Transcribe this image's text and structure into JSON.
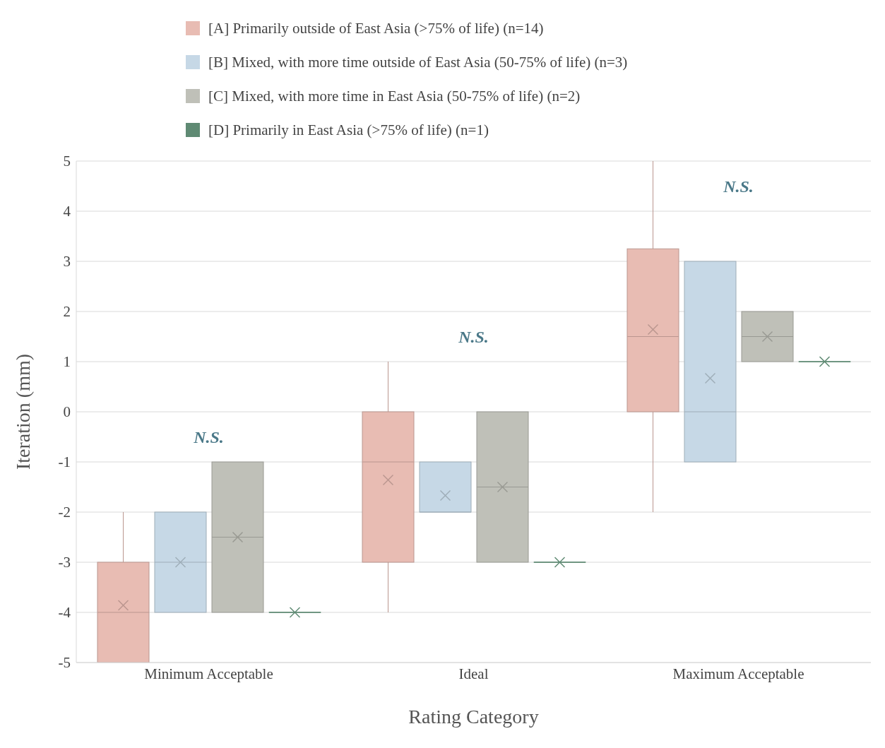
{
  "chart_data": {
    "type": "box",
    "xlabel": "Rating Category",
    "ylabel": "Iteration (mm)",
    "categories": [
      "Minimum Acceptable",
      "Ideal",
      "Maximum Acceptable"
    ],
    "ylim": [
      -5,
      5
    ],
    "yticks": [
      -5,
      -4,
      -3,
      -2,
      -1,
      0,
      1,
      2,
      3,
      4,
      5
    ],
    "grid": "y",
    "legend": "top",
    "annotations": [
      "N.S.",
      "N.S.",
      "N.S."
    ],
    "series": [
      {
        "name": "[A] Primarily outside of East Asia (>75% of life) (n=14)",
        "color": "#e8bcb3",
        "boxes": [
          {
            "low": -5,
            "q1": -5,
            "median": -4,
            "q3": -3,
            "high": -2,
            "mean": -3.86
          },
          {
            "low": -4,
            "q1": -3,
            "median": -1,
            "q3": 0,
            "high": 1,
            "mean": -1.36
          },
          {
            "low": -2,
            "q1": 0,
            "median": 1.5,
            "q3": 3.25,
            "high": 5,
            "mean": 1.64
          }
        ]
      },
      {
        "name": "[B] Mixed, with more time outside of East Asia (50-75% of life) (n=3)",
        "color": "#c6d8e6",
        "boxes": [
          {
            "low": -4,
            "q1": -4,
            "median": -3,
            "q3": -2,
            "high": -2,
            "mean": -3
          },
          {
            "low": -2,
            "q1": -2,
            "median": -2,
            "q3": -1,
            "high": -1,
            "mean": -1.67
          },
          {
            "low": -1,
            "q1": -1,
            "median": 0,
            "q3": 3,
            "high": 3,
            "mean": 0.67
          }
        ]
      },
      {
        "name": "[C] Mixed, with more time in East Asia (50-75% of life) (n=2)",
        "color": "#bfc0b8",
        "boxes": [
          {
            "low": -4,
            "q1": -4,
            "median": -2.5,
            "q3": -1,
            "high": -1,
            "mean": -2.5
          },
          {
            "low": -3,
            "q1": -3,
            "median": -1.5,
            "q3": 0,
            "high": 0,
            "mean": -1.5
          },
          {
            "low": 1,
            "q1": 1,
            "median": 1.5,
            "q3": 2,
            "high": 2,
            "mean": 1.5
          }
        ]
      },
      {
        "name": "[D] Primarily in East Asia (>75% of life) (n=1)",
        "color": "#5f8a73",
        "boxes": [
          {
            "low": -4,
            "q1": -4,
            "median": -4,
            "q3": -4,
            "high": -4,
            "mean": -4
          },
          {
            "low": -3,
            "q1": -3,
            "median": -3,
            "q3": -3,
            "high": -3,
            "mean": -3
          },
          {
            "low": 1,
            "q1": 1,
            "median": 1,
            "q3": 1,
            "high": 1,
            "mean": 1
          }
        ]
      }
    ]
  }
}
